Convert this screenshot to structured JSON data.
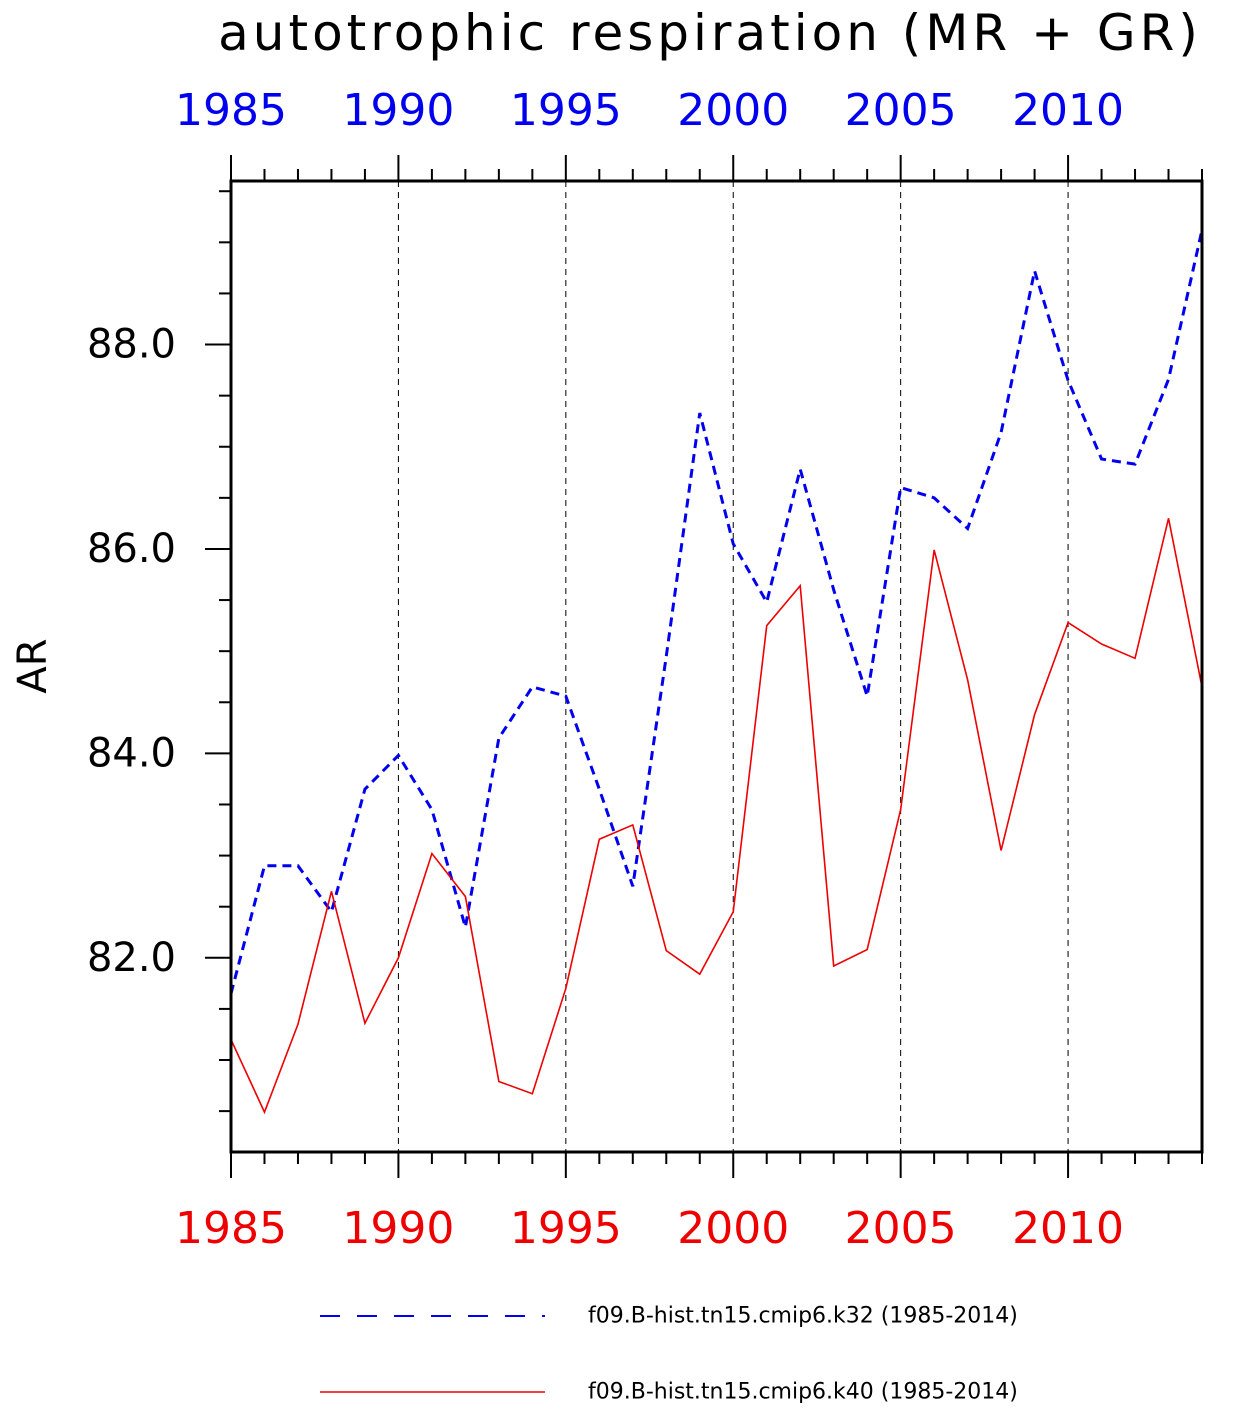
{
  "chart_data": {
    "type": "line",
    "title": "autotrophic respiration (MR + GR)",
    "ylabel": "AR",
    "xlim": [
      1985,
      2014
    ],
    "ylim": [
      80.1,
      89.6
    ],
    "yticks": [
      82.0,
      84.0,
      86.0,
      88.0
    ],
    "ytick_labels": [
      "82.0",
      "84.0",
      "86.0",
      "88.0"
    ],
    "xticks": [
      1985,
      1990,
      1995,
      2000,
      2005,
      2010
    ],
    "xtick_labels": [
      "1985",
      "1990",
      "1995",
      "2000",
      "2005",
      "2010"
    ],
    "x": [
      1985,
      1986,
      1987,
      1988,
      1989,
      1990,
      1991,
      1992,
      1993,
      1994,
      1995,
      1996,
      1997,
      1998,
      1999,
      2000,
      2001,
      2002,
      2003,
      2004,
      2005,
      2006,
      2007,
      2008,
      2009,
      2010,
      2011,
      2012,
      2013,
      2014
    ],
    "grid": "vertical dashed at major x ticks",
    "legend_position": "bottom",
    "series": [
      {
        "name": "f09.B-hist.tn15.cmip6.k32 (1985-2014)",
        "color": "#0000ee",
        "style": "dashed",
        "axis_color": "top",
        "values": [
          81.65,
          82.9,
          82.9,
          82.45,
          83.65,
          83.98,
          83.45,
          82.3,
          84.15,
          84.65,
          84.56,
          83.65,
          82.7,
          84.95,
          87.33,
          86.05,
          85.48,
          86.78,
          85.6,
          84.56,
          86.6,
          86.5,
          86.2,
          87.14,
          88.72,
          87.65,
          86.88,
          86.83,
          87.66,
          89.12
        ]
      },
      {
        "name": "f09.B-hist.tn15.cmip6.k40 (1985-2014)",
        "color": "#ee0000",
        "style": "solid",
        "axis_color": "bottom",
        "values": [
          81.2,
          80.49,
          81.35,
          82.65,
          81.36,
          82.0,
          83.02,
          82.6,
          80.79,
          80.67,
          81.7,
          83.16,
          83.3,
          82.07,
          81.84,
          82.45,
          85.25,
          85.64,
          81.92,
          82.08,
          83.45,
          85.99,
          84.72,
          83.05,
          84.38,
          85.28,
          85.07,
          84.93,
          86.3,
          84.65
        ]
      }
    ]
  }
}
